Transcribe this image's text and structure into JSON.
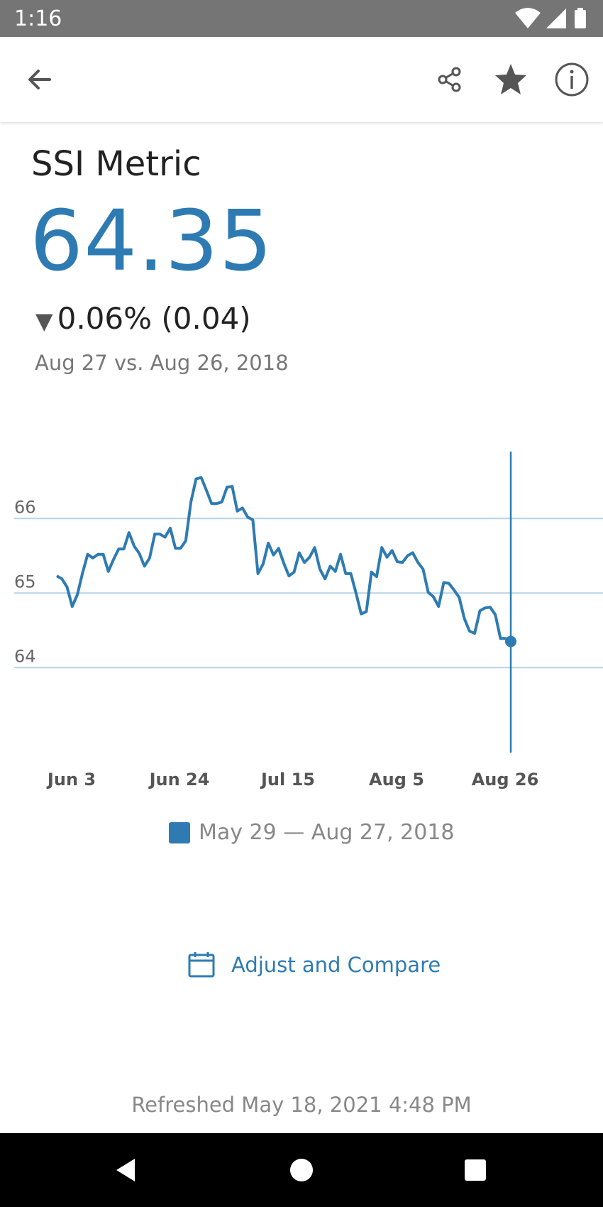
{
  "status_bar": {
    "time": "1:16",
    "icons": [
      "wifi-icon",
      "signal-icon",
      "battery-icon"
    ]
  },
  "toolbar": {
    "back_icon": "arrow-left-icon",
    "share_icon": "share-icon",
    "favorite_icon": "star-icon",
    "info_icon": "info-icon"
  },
  "metric": {
    "name": "SSI Metric",
    "value": "64.35",
    "change_arrow": "▼",
    "change": "0.06% (0.04)",
    "comparison": "Aug 27 vs. Aug 26, 2018"
  },
  "chart_data": {
    "type": "line",
    "x_ticks": [
      "Jun 3",
      "Jun 24",
      "Jul 15",
      "Aug 5",
      "Aug 26"
    ],
    "y_ticks": [
      66,
      65,
      64
    ],
    "ylim": [
      63.05,
      67.05
    ],
    "xrange": [
      "May 29",
      "Aug 27, 2018"
    ],
    "series": [
      {
        "name": "May 29 — Aug 27, 2018",
        "color": "#2e7bb3",
        "values": [
          65.23,
          65.19,
          65.08,
          64.82,
          64.98,
          65.27,
          65.52,
          65.47,
          65.52,
          65.52,
          65.29,
          65.45,
          65.59,
          65.59,
          65.81,
          65.63,
          65.53,
          65.36,
          65.47,
          65.79,
          65.79,
          65.75,
          65.87,
          65.6,
          65.6,
          65.7,
          66.22,
          66.53,
          66.55,
          66.38,
          66.2,
          66.2,
          66.22,
          66.42,
          66.43,
          66.1,
          66.14,
          66.02,
          65.98,
          65.26,
          65.39,
          65.67,
          65.51,
          65.6,
          65.4,
          65.23,
          65.28,
          65.54,
          65.41,
          65.48,
          65.61,
          65.32,
          65.19,
          65.36,
          65.29,
          65.52,
          65.26,
          65.26,
          65.0,
          64.72,
          64.75,
          65.28,
          65.22,
          65.61,
          65.48,
          65.57,
          65.42,
          65.41,
          65.5,
          65.54,
          65.41,
          65.32,
          65.01,
          64.95,
          64.82,
          65.14,
          65.13,
          65.04,
          64.94,
          64.66,
          64.49,
          64.46,
          64.76,
          64.8,
          64.81,
          64.71,
          64.39,
          64.39,
          64.35
        ]
      }
    ],
    "selected_point": {
      "x": "Aug 27",
      "y": 64.35
    },
    "grid": true,
    "legend_position": "bottom"
  },
  "actions": {
    "adjust_label": "Adjust and Compare",
    "adjust_icon": "calendar-icon"
  },
  "footer": {
    "refreshed": "Refreshed May 18, 2021 4:48 PM"
  },
  "nav_bar": {
    "back": "back-triangle-icon",
    "home": "home-circle-icon",
    "recents": "recents-square-icon"
  }
}
